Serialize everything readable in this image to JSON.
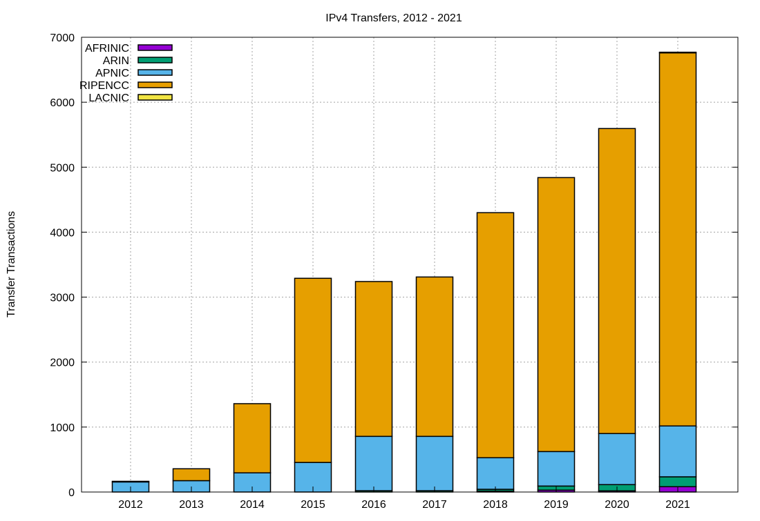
{
  "chart_data": {
    "type": "bar",
    "stacked": true,
    "title": "IPv4 Transfers, 2012 - 2021",
    "xlabel": "",
    "ylabel": "Transfer Transactions",
    "ylim": [
      0,
      7000
    ],
    "yticks": [
      0,
      1000,
      2000,
      3000,
      4000,
      5000,
      6000,
      7000
    ],
    "grid": true,
    "legend_position": "top-left",
    "categories": [
      "2012",
      "2013",
      "2014",
      "2015",
      "2016",
      "2017",
      "2018",
      "2019",
      "2020",
      "2021"
    ],
    "series": [
      {
        "name": "AFRINIC",
        "color": "#9400d3",
        "values": [
          0,
          0,
          0,
          0,
          0,
          0,
          14,
          29,
          18,
          82
        ]
      },
      {
        "name": "ARIN",
        "color": "#009e73",
        "values": [
          0,
          0,
          0,
          0,
          20,
          20,
          28,
          63,
          96,
          152
        ]
      },
      {
        "name": "APNIC",
        "color": "#56b4e9",
        "values": [
          155,
          175,
          295,
          455,
          837,
          837,
          486,
          531,
          786,
          783
        ]
      },
      {
        "name": "RIPENCC",
        "color": "#e69f00",
        "values": [
          0,
          183,
          1065,
          2835,
          2383,
          2453,
          3772,
          4217,
          4695,
          5743
        ]
      },
      {
        "name": "LACNIC",
        "color": "#f0e442",
        "values": [
          10,
          0,
          0,
          0,
          0,
          0,
          0,
          0,
          0,
          10
        ]
      }
    ]
  }
}
